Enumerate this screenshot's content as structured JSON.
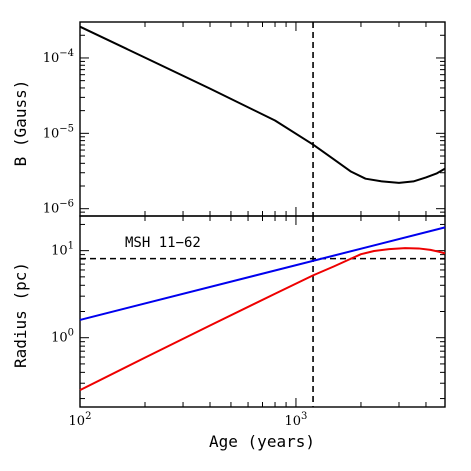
{
  "chart_data": [
    {
      "type": "line",
      "panel": "top",
      "ylabel": "B (Gauss)",
      "xlabel": "",
      "xscale": "log",
      "yscale": "log",
      "xlim": [
        100,
        4900
      ],
      "ylim": [
        8e-07,
        0.0003
      ],
      "yticks": [
        {
          "value": 0.0001,
          "label_base": "10",
          "label_exp": "−4"
        },
        {
          "value": 1e-05,
          "label_base": "10",
          "label_exp": "−5"
        },
        {
          "value": 1e-06,
          "label_base": "10",
          "label_exp": "−6"
        }
      ],
      "vline": {
        "x": 1200,
        "style": "dashed",
        "color": "#000000"
      },
      "series": [
        {
          "color": "#000000",
          "x": [
            100,
            200,
            400,
            800,
            1200,
            1500,
            1800,
            2100,
            2500,
            3000,
            3500,
            4000,
            4500,
            4900
          ],
          "y": [
            0.00026,
            0.000101,
            3.92e-05,
            1.48e-05,
            7.1e-06,
            4.5e-06,
            3.1e-06,
            2.5e-06,
            2.3e-06,
            2.2e-06,
            2.3e-06,
            2.6e-06,
            2.95e-06,
            3.4e-06
          ]
        }
      ]
    },
    {
      "type": "line",
      "panel": "bottom",
      "ylabel": "Radius (pc)",
      "xlabel": "Age (years)",
      "xscale": "log",
      "yscale": "log",
      "xlim": [
        100,
        4900
      ],
      "ylim": [
        0.16,
        25
      ],
      "xticks": [
        {
          "value": 100,
          "label_base": "10",
          "label_exp": "2"
        },
        {
          "value": 1000,
          "label_base": "10",
          "label_exp": "3"
        }
      ],
      "yticks": [
        {
          "value": 10,
          "label_base": "10",
          "label_exp": "1"
        },
        {
          "value": 1,
          "label_base": "10",
          "label_exp": "0"
        }
      ],
      "vline": {
        "x": 1200,
        "style": "dashed",
        "color": "#000000"
      },
      "hline": {
        "y": 8.1,
        "style": "dashed",
        "color": "#000000"
      },
      "annotation": "MSH 11−62",
      "series": [
        {
          "color": "#0000ee",
          "x": [
            100,
            4900
          ],
          "y": [
            1.6,
            18.5
          ]
        },
        {
          "color": "#ee0000",
          "x": [
            100,
            200,
            400,
            800,
            1200,
            1500,
            1800,
            2000,
            2300,
            2700,
            3200,
            3700,
            4200,
            4600,
            4900
          ],
          "y": [
            0.25,
            0.59,
            1.38,
            3.2,
            5.2,
            6.6,
            8.1,
            9.1,
            9.9,
            10.4,
            10.7,
            10.6,
            10.2,
            9.7,
            9.3
          ]
        }
      ]
    }
  ]
}
